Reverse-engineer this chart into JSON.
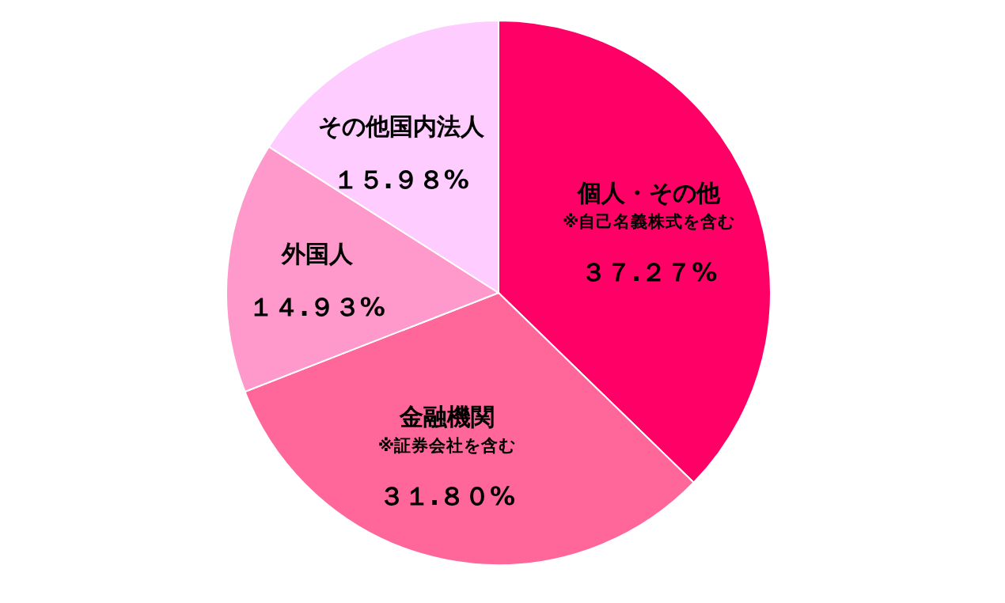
{
  "chart_data": {
    "type": "pie",
    "categories": [
      "個人・その他",
      "金融機関",
      "外国人",
      "その他国内法人"
    ],
    "values": [
      37.27,
      31.8,
      14.93,
      15.98
    ],
    "colors": [
      "#ff0066",
      "#ff6699",
      "#ff99cc",
      "#ffccff"
    ],
    "value_labels": [
      "３７.２７%",
      "３１.８０%",
      "１４.９３%",
      "１５.９８%"
    ],
    "annotations": [
      {
        "text": "※自己名義株式を含む",
        "x": "個人・その他"
      },
      {
        "text": "※証券会社を含む",
        "x": "金融機関"
      }
    ]
  }
}
